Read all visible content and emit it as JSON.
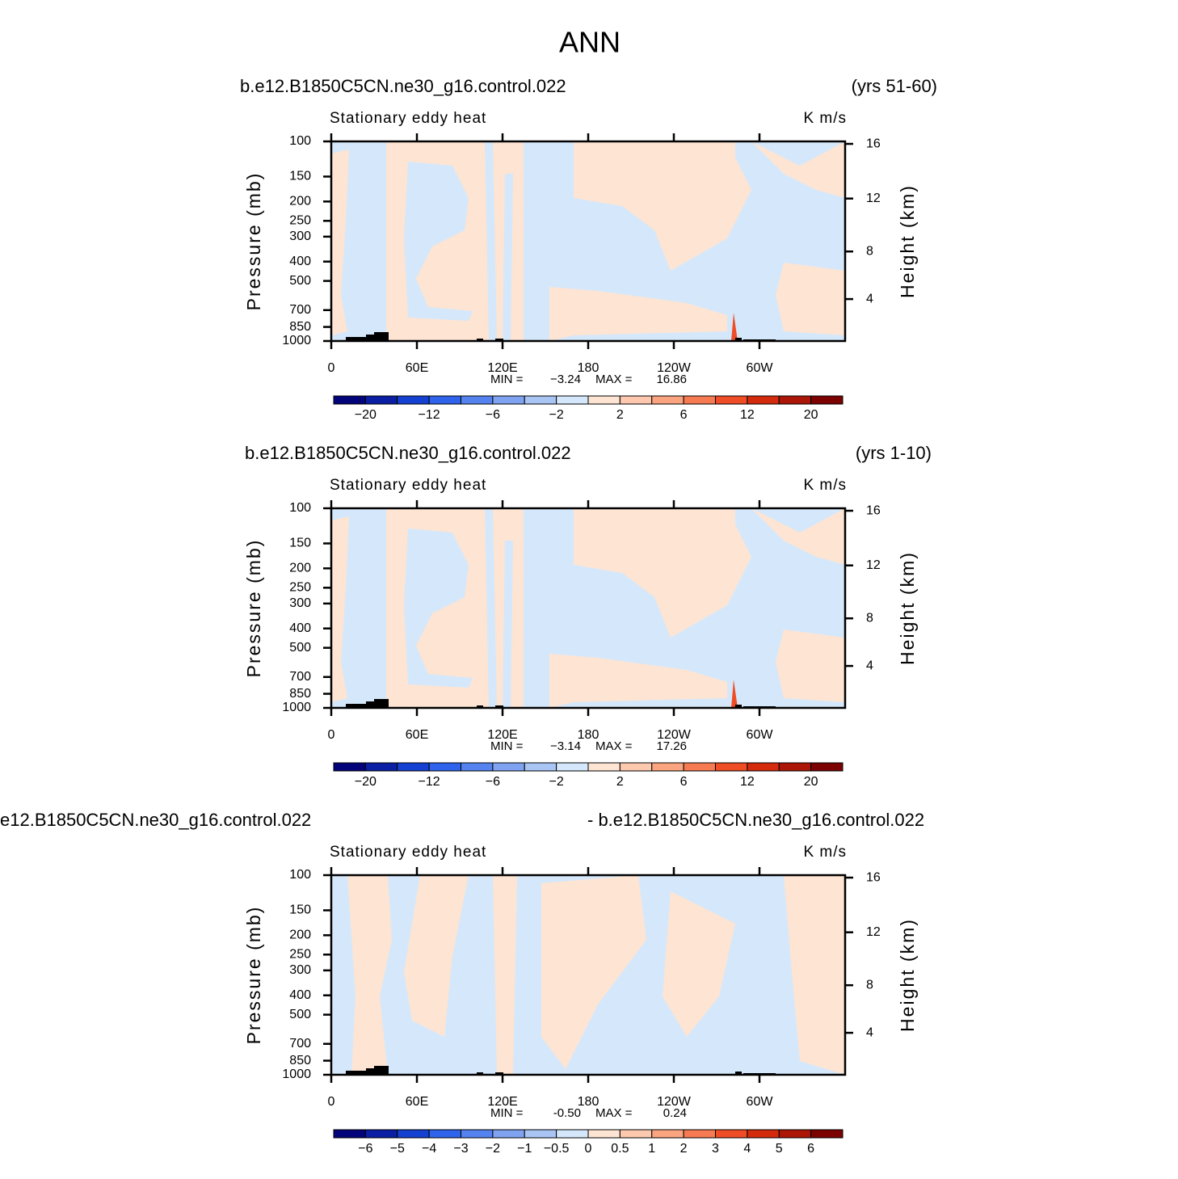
{
  "title": "ANN",
  "chart_data": [
    {
      "type": "contour",
      "title_left": "b.e12.B1850C5CN.ne30_g16.control.022",
      "title_right": "(yrs 51-60)",
      "subtitle": "Stationary eddy heat",
      "units": "K m/s",
      "ylabel": "Pressure (mb)",
      "y2label": "Height (km)",
      "log_y": true,
      "xlim": [
        0,
        360
      ],
      "xticks": [
        0,
        {
          "value": 60,
          "label": "60E"
        },
        {
          "value": 120,
          "label": "120E"
        },
        180,
        {
          "value": 240,
          "label": "120W"
        },
        {
          "value": 300,
          "label": "60W"
        }
      ],
      "ylim": [
        1000,
        100
      ],
      "yticks": [
        100,
        150,
        200,
        250,
        300,
        400,
        500,
        700,
        850,
        1000
      ],
      "y2ticks": [
        4,
        8,
        12,
        16
      ],
      "min_label": "MIN =",
      "min": -3.24,
      "max_label": "MAX =",
      "max": 16.86,
      "colorbar": {
        "levels": [
          -20,
          null,
          -12,
          null,
          -6,
          null,
          -2,
          null,
          2,
          null,
          6,
          null,
          12,
          null,
          20
        ],
        "colors": [
          "#04047a",
          "#0a1fa3",
          "#1441d1",
          "#2f63ec",
          "#5483f0",
          "#80a3f1",
          "#a9c5f4",
          "#d5e8fb",
          "#fde4d3",
          "#fcc8ae",
          "#fba480",
          "#f67a52",
          "#ef4d25",
          "#d42b0c",
          "#ac1606",
          "#7c0202"
        ]
      }
    },
    {
      "type": "contour",
      "title_left": "b.e12.B1850C5CN.ne30_g16.control.022",
      "title_right": "(yrs 1-10)",
      "subtitle": "Stationary eddy heat",
      "units": "K m/s",
      "ylabel": "Pressure (mb)",
      "y2label": "Height (km)",
      "log_y": true,
      "xlim": [
        0,
        360
      ],
      "xticks": [
        0,
        {
          "value": 60,
          "label": "60E"
        },
        {
          "value": 120,
          "label": "120E"
        },
        180,
        {
          "value": 240,
          "label": "120W"
        },
        {
          "value": 300,
          "label": "60W"
        }
      ],
      "ylim": [
        1000,
        100
      ],
      "yticks": [
        100,
        150,
        200,
        250,
        300,
        400,
        500,
        700,
        850,
        1000
      ],
      "y2ticks": [
        4,
        8,
        12,
        16
      ],
      "min_label": "MIN =",
      "min": -3.14,
      "max_label": "MAX =",
      "max": 17.26,
      "colorbar": {
        "levels": [
          -20,
          null,
          -12,
          null,
          -6,
          null,
          -2,
          null,
          2,
          null,
          6,
          null,
          12,
          null,
          20
        ],
        "colors": [
          "#04047a",
          "#0a1fa3",
          "#1441d1",
          "#2f63ec",
          "#5483f0",
          "#80a3f1",
          "#a9c5f4",
          "#d5e8fb",
          "#fde4d3",
          "#fcc8ae",
          "#fba480",
          "#f67a52",
          "#ef4d25",
          "#d42b0c",
          "#ac1606",
          "#7c0202"
        ]
      }
    },
    {
      "type": "contour",
      "title_left": "e12.B1850C5CN.ne30_g16.control.022",
      "title_right": "- b.e12.B1850C5CN.ne30_g16.control.022",
      "subtitle": "Stationary eddy heat",
      "units": "K m/s",
      "ylabel": "Pressure (mb)",
      "y2label": "Height (km)",
      "log_y": true,
      "xlim": [
        0,
        360
      ],
      "xticks": [
        0,
        {
          "value": 60,
          "label": "60E"
        },
        {
          "value": 120,
          "label": "120E"
        },
        180,
        {
          "value": 240,
          "label": "120W"
        },
        {
          "value": 300,
          "label": "60W"
        }
      ],
      "ylim": [
        1000,
        100
      ],
      "yticks": [
        100,
        150,
        200,
        250,
        300,
        400,
        500,
        700,
        850,
        1000
      ],
      "y2ticks": [
        4,
        8,
        12,
        16
      ],
      "min_label": "MIN =",
      "min": {
        "value": -0.5,
        "label": "-0.50"
      },
      "max_label": "MAX =",
      "max": 0.24,
      "colorbar": {
        "levels": [
          -6,
          -5,
          -4,
          -3,
          -2,
          -1,
          -0.5,
          0,
          0.5,
          1,
          2,
          3,
          4,
          5,
          6
        ],
        "colors": [
          "#04047a",
          "#0a1fa3",
          "#1441d1",
          "#2f63ec",
          "#5483f0",
          "#80a3f1",
          "#a9c5f4",
          "#d5e8fb",
          "#fde4d3",
          "#fcc8ae",
          "#fba480",
          "#f67a52",
          "#ef4d25",
          "#d42b0c",
          "#ac1606",
          "#7c0202"
        ]
      }
    }
  ]
}
